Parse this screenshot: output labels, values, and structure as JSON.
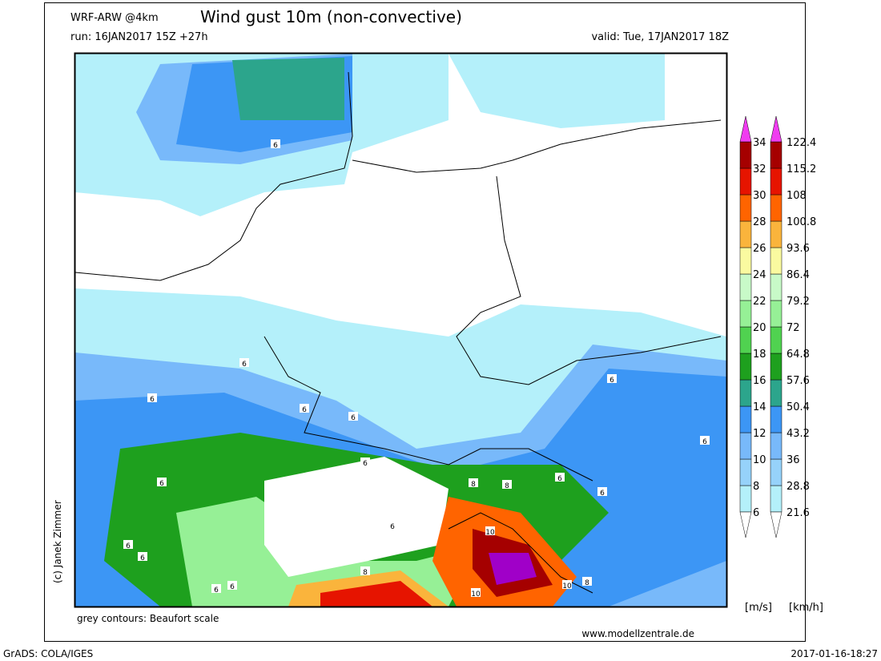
{
  "header": {
    "model": "WRF-ARW @4km",
    "title": "Wind gust 10m (non-convective)",
    "run": "run: 16JAN2017 15Z +27h",
    "valid": "valid: Tue, 17JAN2017 18Z"
  },
  "legend": {
    "unit_ms": "[m/s]",
    "unit_kmh": "[km/h]",
    "levels_ms": [
      6,
      8,
      10,
      12,
      14,
      16,
      18,
      20,
      22,
      24,
      26,
      28,
      30,
      32,
      34
    ],
    "levels_kmh": [
      21.6,
      28.8,
      36,
      43.2,
      50.4,
      57.6,
      64.8,
      72,
      79.2,
      86.4,
      93.6,
      100.8,
      108,
      115.2,
      122.4
    ],
    "colors": [
      "#b4f0fa",
      "#96d2fa",
      "#78b9fa",
      "#3c96f5",
      "#2ca58c",
      "#1ea01e",
      "#50d250",
      "#96f096",
      "#c8fac8",
      "#fafaa0",
      "#fab43c",
      "#ff6400",
      "#e61400",
      "#a50000",
      "#a000c8",
      "#f03cf0"
    ]
  },
  "map": {
    "contour_labels": [
      6,
      6,
      6,
      6,
      6,
      6,
      6,
      6,
      6,
      6,
      6,
      6,
      6,
      6,
      6,
      6,
      8,
      8,
      8,
      8,
      10,
      10,
      10
    ]
  },
  "footer": {
    "note": "grey contours: Beaufort scale",
    "url": "www.modellzentrale.de",
    "copyright": "(c) Janek Zimmer",
    "software": "GrADS: COLA/IGES",
    "timestamp": "2017-01-16-18:27"
  }
}
